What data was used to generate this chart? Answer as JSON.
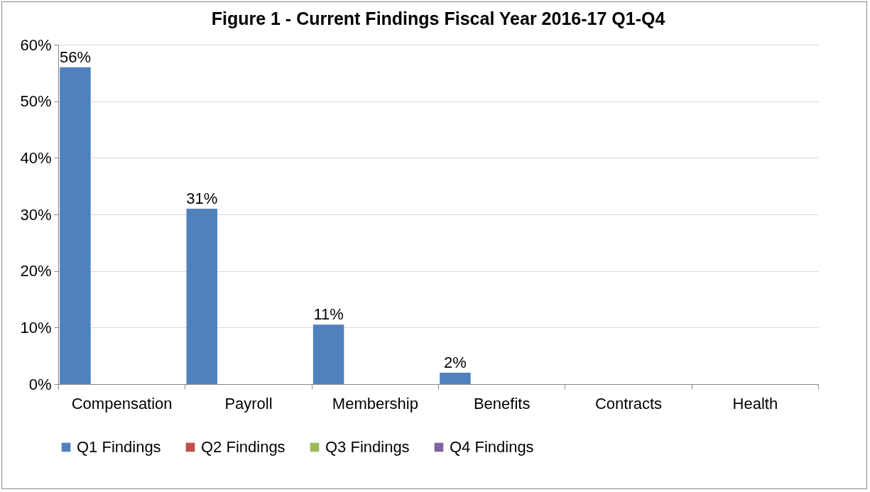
{
  "chart_data": {
    "type": "bar",
    "title": "Figure 1 - Current Findings Fiscal Year 2016-17 Q1-Q4",
    "categories": [
      "Compensation",
      "Payroll",
      "Membership",
      "Benefits",
      "Contracts",
      "Health"
    ],
    "series": [
      {
        "name": "Q1 Findings",
        "color": "#4f81bd",
        "values": [
          56,
          31,
          10.5,
          2,
          null,
          null
        ],
        "value_labels": [
          "56%",
          "31%",
          "11%",
          "2%",
          null,
          null
        ]
      },
      {
        "name": "Q2 Findings",
        "color": "#c0504d",
        "values": [
          null,
          null,
          null,
          null,
          null,
          null
        ]
      },
      {
        "name": "Q3 Findings",
        "color": "#9bbb59",
        "values": [
          null,
          null,
          null,
          null,
          null,
          null
        ]
      },
      {
        "name": "Q4 Findings",
        "color": "#8064a2",
        "values": [
          null,
          null,
          null,
          null,
          null,
          null
        ]
      }
    ],
    "ylim": [
      0,
      60
    ],
    "yticks": [
      {
        "value": 0,
        "label": "0%"
      },
      {
        "value": 10,
        "label": "10%"
      },
      {
        "value": 20,
        "label": "20%"
      },
      {
        "value": 30,
        "label": "30%"
      },
      {
        "value": 40,
        "label": "40%"
      },
      {
        "value": 50,
        "label": "50%"
      },
      {
        "value": 60,
        "label": "60%"
      }
    ],
    "grid": "y",
    "legend": "bottom"
  }
}
